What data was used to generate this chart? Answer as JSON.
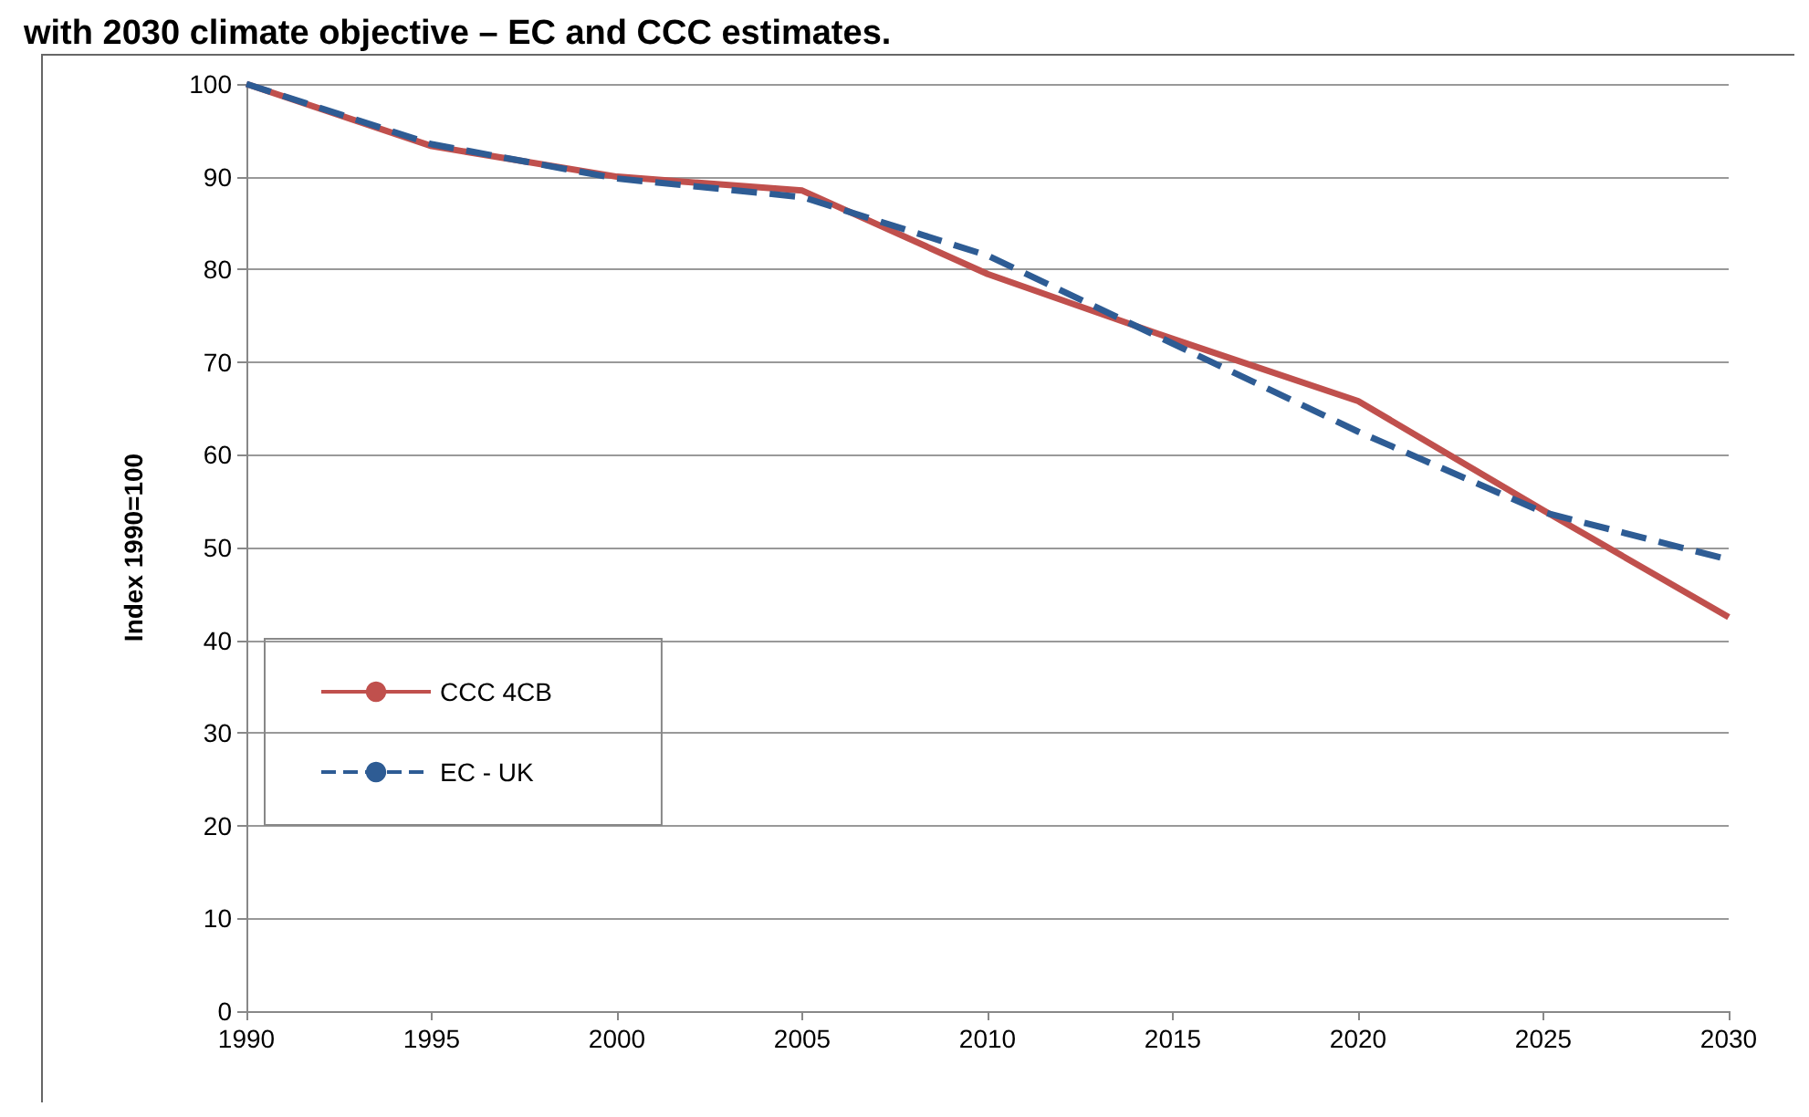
{
  "chart_data": {
    "type": "line",
    "title": "with 2030 climate objective – EC and CCC estimates.",
    "ylabel": "Index 1990=100",
    "x": [
      1990,
      1995,
      2000,
      2005,
      2010,
      2015,
      2020,
      2025,
      2030
    ],
    "xlim": [
      1990,
      2030
    ],
    "xticks": [
      1990,
      1995,
      2000,
      2005,
      2010,
      2015,
      2020,
      2025,
      2030
    ],
    "ylim": [
      0,
      100
    ],
    "yticks": [
      0,
      10,
      20,
      30,
      40,
      50,
      60,
      70,
      80,
      90,
      100
    ],
    "grid": "y",
    "legend": "left",
    "marker": "none",
    "series": [
      {
        "name": "CCC 4CB",
        "color": "#c0504d",
        "line_style": "solid",
        "values": [
          100,
          93.3,
          90,
          88.5,
          79.5,
          72.5,
          65.8,
          54,
          42.5
        ]
      },
      {
        "name": "EC - UK",
        "color": "#2e5c94",
        "line_style": "dashed",
        "values": [
          100,
          93.5,
          89.8,
          87.8,
          81.5,
          72,
          62.5,
          53.8,
          48.7
        ]
      }
    ]
  }
}
